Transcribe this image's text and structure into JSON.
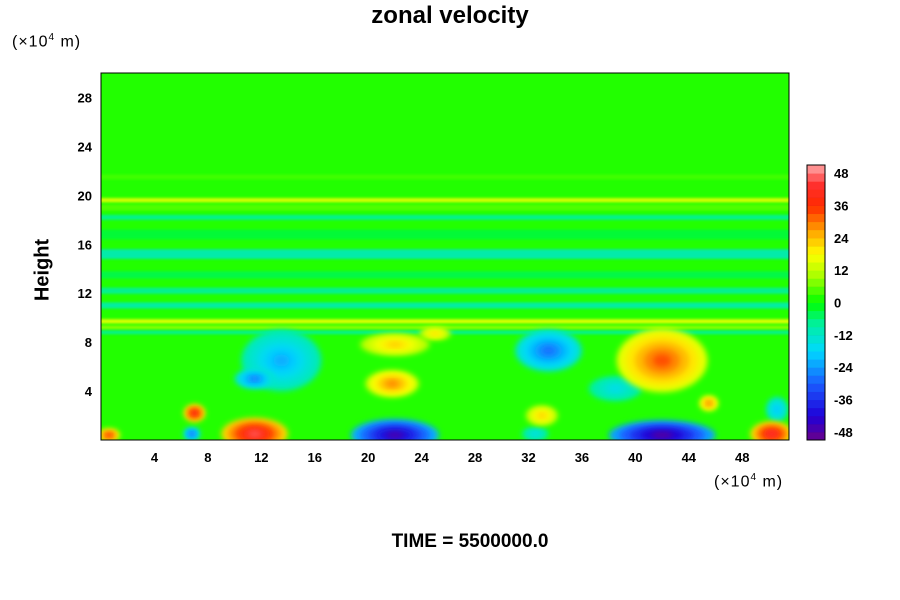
{
  "chart_data": {
    "type": "heatmap",
    "title": "zonal velocity",
    "ylabel": "Height",
    "x_unit": "(×10",
    "x_unit_exp": "4",
    "x_unit_tail": " m)",
    "y_unit": "(×10",
    "y_unit_exp": "4",
    "y_unit_tail": " m)",
    "footer": "TIME = 5500000.0",
    "xlim": [
      0,
      51.5
    ],
    "ylim": [
      0,
      30
    ],
    "x_ticks": [
      4,
      8,
      12,
      16,
      20,
      24,
      28,
      32,
      36,
      40,
      44,
      48
    ],
    "y_ticks": [
      4,
      8,
      12,
      16,
      20,
      24,
      28
    ],
    "colorbar": {
      "min": -51,
      "max": 51,
      "ticks": [
        48,
        36,
        24,
        12,
        0,
        -12,
        -24,
        -36,
        -48
      ],
      "stops": [
        {
          "v": -51,
          "color": "#6a008a"
        },
        {
          "v": -42,
          "color": "#1f00d8"
        },
        {
          "v": -30,
          "color": "#1a5cff"
        },
        {
          "v": -18,
          "color": "#00d8ff"
        },
        {
          "v": -8,
          "color": "#00f0a0"
        },
        {
          "v": 0,
          "color": "#00ff00"
        },
        {
          "v": 10,
          "color": "#aaff00"
        },
        {
          "v": 18,
          "color": "#ffff00"
        },
        {
          "v": 26,
          "color": "#ffaa00"
        },
        {
          "v": 36,
          "color": "#ff2a00"
        },
        {
          "v": 44,
          "color": "#ff3030"
        },
        {
          "v": 51,
          "color": "#ffaaaa"
        }
      ]
    },
    "background_value": 2,
    "layers": [
      {
        "y": 21.5,
        "h": 0.4,
        "v": 4
      },
      {
        "y": 19.6,
        "h": 0.35,
        "v": 16
      },
      {
        "y": 19.0,
        "h": 0.5,
        "v": 5
      },
      {
        "y": 18.2,
        "h": 0.4,
        "v": -8
      },
      {
        "y": 16.8,
        "h": 0.8,
        "v": -3
      },
      {
        "y": 15.2,
        "h": 0.8,
        "v": -11
      },
      {
        "y": 13.5,
        "h": 0.6,
        "v": -4
      },
      {
        "y": 12.2,
        "h": 0.5,
        "v": -8
      },
      {
        "y": 11.0,
        "h": 0.5,
        "v": -10
      },
      {
        "y": 9.7,
        "h": 0.35,
        "v": 17
      },
      {
        "y": 9.2,
        "h": 0.3,
        "v": 9
      },
      {
        "y": 8.8,
        "h": 0.3,
        "v": -8
      }
    ],
    "features": [
      {
        "x": 13.5,
        "y": 6.5,
        "rx": 3.0,
        "ry": 2.5,
        "v": -22
      },
      {
        "x": 11.5,
        "y": 5.0,
        "rx": 1.5,
        "ry": 0.8,
        "v": -27
      },
      {
        "x": 22.0,
        "y": 7.8,
        "rx": 2.6,
        "ry": 0.9,
        "v": 23
      },
      {
        "x": 25.0,
        "y": 8.7,
        "rx": 1.2,
        "ry": 0.5,
        "v": 22
      },
      {
        "x": 21.8,
        "y": 4.6,
        "rx": 2.0,
        "ry": 1.1,
        "v": 29
      },
      {
        "x": 33.5,
        "y": 7.3,
        "rx": 2.5,
        "ry": 1.7,
        "v": -28
      },
      {
        "x": 42.0,
        "y": 6.5,
        "rx": 3.4,
        "ry": 2.6,
        "v": 33
      },
      {
        "x": 38.5,
        "y": 4.2,
        "rx": 2.0,
        "ry": 1.0,
        "v": -16
      },
      {
        "x": 33.0,
        "y": 2.0,
        "rx": 1.2,
        "ry": 0.8,
        "v": 23
      },
      {
        "x": 45.5,
        "y": 3.0,
        "rx": 0.7,
        "ry": 0.6,
        "v": 30
      },
      {
        "x": 7.0,
        "y": 2.2,
        "rx": 0.8,
        "ry": 0.7,
        "v": 42
      },
      {
        "x": 6.8,
        "y": 0.5,
        "rx": 0.6,
        "ry": 0.5,
        "v": -30
      },
      {
        "x": 11.5,
        "y": 0.5,
        "rx": 2.5,
        "ry": 1.3,
        "v": 46
      },
      {
        "x": 22.0,
        "y": 0.4,
        "rx": 3.3,
        "ry": 1.3,
        "v": -47
      },
      {
        "x": 32.5,
        "y": 0.5,
        "rx": 1.0,
        "ry": 0.5,
        "v": -16
      },
      {
        "x": 42.0,
        "y": 0.4,
        "rx": 4.0,
        "ry": 1.2,
        "v": -49
      },
      {
        "x": 50.2,
        "y": 0.5,
        "rx": 1.6,
        "ry": 1.0,
        "v": 44
      },
      {
        "x": 0.6,
        "y": 0.4,
        "rx": 0.8,
        "ry": 0.5,
        "v": 38
      },
      {
        "x": 50.6,
        "y": 2.5,
        "rx": 0.8,
        "ry": 1.0,
        "v": -20
      }
    ]
  }
}
